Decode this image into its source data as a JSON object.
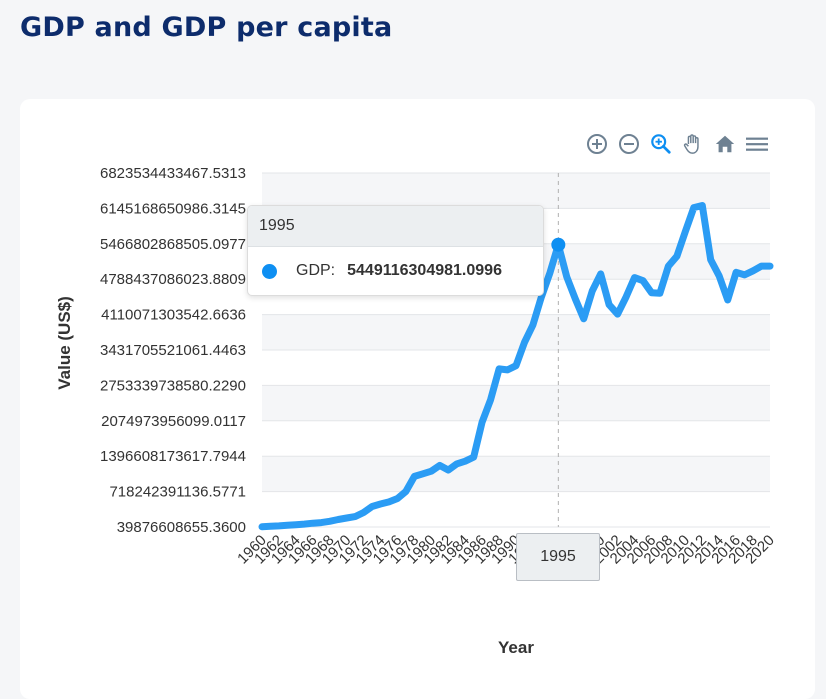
{
  "page": {
    "title": "GDP and GDP per capita"
  },
  "toolbar": [
    {
      "name": "zoom-in-icon"
    },
    {
      "name": "zoom-out-icon"
    },
    {
      "name": "selection-zoom-icon"
    },
    {
      "name": "pan-icon"
    },
    {
      "name": "reset-home-icon"
    },
    {
      "name": "menu-icon"
    }
  ],
  "tooltip": {
    "header": "1995",
    "series_name": "GDP:",
    "value": "5449116304981.0996",
    "x_label": "1995"
  },
  "colors": {
    "series": "#2b9cf4",
    "title": "#0d2c6c",
    "active": "#0e8ff2"
  },
  "chart_data": {
    "type": "line",
    "title": "",
    "xlabel": "Year",
    "ylabel": "Value (US$)",
    "ylim": [
      39876608655.36,
      6823534433467.531
    ],
    "yticks": [
      "6823534433467.5313",
      "6145168650986.3145",
      "5466802868505.0977",
      "4788437086023.8809",
      "4110071303542.6636",
      "3431705521061.4463",
      "2753339738580.2290",
      "2074973956099.0117",
      "1396608173617.7944",
      "718242391136.5771",
      "39876608655.3600"
    ],
    "xticks": [
      "1960",
      "1962",
      "1964",
      "1966",
      "1968",
      "1970",
      "1972",
      "1974",
      "1976",
      "1978",
      "1980",
      "1982",
      "1984",
      "1986",
      "1988",
      "1990",
      "1992",
      "1994",
      "1996",
      "1998",
      "2000",
      "2002",
      "2004",
      "2006",
      "2008",
      "2010",
      "2012",
      "2014",
      "2016",
      "2018",
      "2020"
    ],
    "grid": true,
    "legend": "none",
    "series": [
      {
        "x": [
          1960,
          1961,
          1962,
          1963,
          1964,
          1965,
          1966,
          1967,
          1968,
          1969,
          1970,
          1971,
          1972,
          1973,
          1974,
          1975,
          1976,
          1977,
          1978,
          1979,
          1980,
          1981,
          1982,
          1983,
          1984,
          1985,
          1986,
          1987,
          1988,
          1989,
          1990,
          1991,
          1992,
          1993,
          1994,
          1995,
          1996,
          1997,
          1998,
          1999,
          2000,
          2001,
          2002,
          2003,
          2004,
          2005,
          2006,
          2007,
          2008,
          2009,
          2010,
          2011,
          2012,
          2013,
          2014,
          2015,
          2016,
          2017,
          2018,
          2019,
          2020
        ],
        "values": [
          44000000000.0,
          53000000000.0,
          61000000000.0,
          73000000000.0,
          84000000000.0,
          95000000000.0,
          113000000000.0,
          124000000000.0,
          150000000000.0,
          183000000000.0,
          212000000000.0,
          240000000000.0,
          318000000000.0,
          432000000000.0,
          480000000000.0,
          521000000000.0,
          586000000000.0,
          722000000000.0,
          1010000000000.0,
          1060000000000.0,
          1110000000000.0,
          1220000000000.0,
          1130000000000.0,
          1250000000000.0,
          1300000000000.0,
          1380000000000.0,
          2050000000000.0,
          2480000000000.0,
          3070000000000.0,
          3050000000000.0,
          3130000000000.0,
          3580000000000.0,
          3910000000000.0,
          4450000000000.0,
          4910000000000.0,
          5449116304981.1,
          4830000000000.0,
          4410000000000.0,
          4030000000000.0,
          4560000000000.0,
          4890000000000.0,
          4300000000000.0,
          4120000000000.0,
          4450000000000.0,
          4820000000000.0,
          4760000000000.0,
          4530000000000.0,
          4520000000000.0,
          5040000000000.0,
          5230000000000.0,
          5700000000000.0,
          6160000000000.0,
          6200000000000.0,
          5160000000000.0,
          4850000000000.0,
          4390000000000.0,
          4920000000000.0,
          4870000000000.0,
          4950000000000.0,
          5040000000000.0,
          5040000000000.0
        ]
      }
    ]
  }
}
